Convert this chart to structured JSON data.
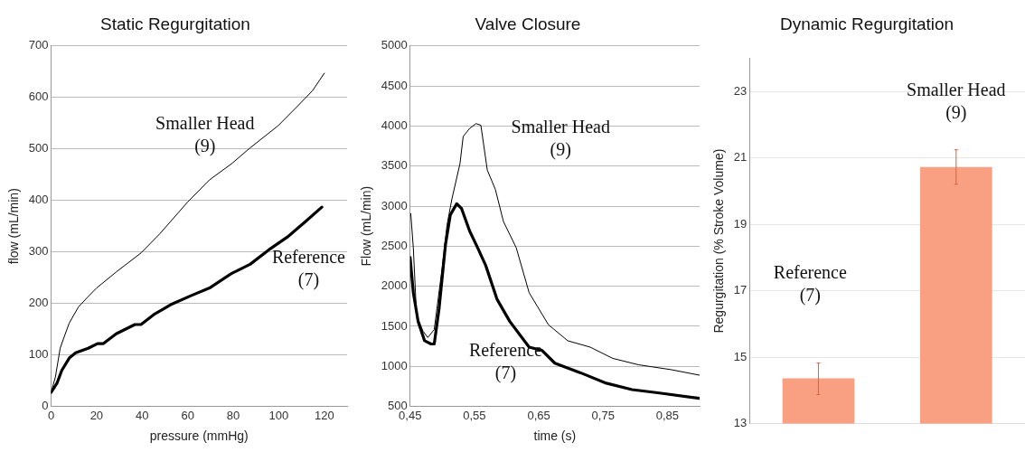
{
  "chart_data": [
    {
      "type": "line",
      "title": "Static Regurgitation",
      "xlabel": "pressure (mmHg)",
      "ylabel": "flow (mL/min)",
      "xlim": [
        0,
        130
      ],
      "xticks": [
        0,
        20,
        40,
        60,
        80,
        100,
        120
      ],
      "ylim": [
        0,
        700
      ],
      "yticks": [
        0,
        100,
        200,
        300,
        400,
        500,
        600,
        700
      ],
      "grid": "y",
      "marker": "none",
      "line_style": "solid",
      "series": [
        {
          "color": "#000000",
          "x": [
            0,
            1.9,
            4,
            6,
            8,
            12,
            16,
            20,
            28.6,
            39.5,
            47.7,
            60,
            69.6,
            79.2,
            87.4,
            99.7,
            108,
            114.8,
            120
          ],
          "values": [
            27,
            57,
            113,
            138,
            162,
            193,
            212,
            230,
            261,
            298,
            335,
            397,
            440,
            471,
            502,
            545,
            582,
            613,
            647
          ]
        },
        {
          "color": "#000000",
          "x": [
            0,
            2.6,
            4.7,
            8,
            10.8,
            16.3,
            20.4,
            23,
            28.6,
            36.8,
            39.5,
            45,
            53.2,
            61.4,
            69.6,
            79.2,
            87.4,
            95.6,
            103.8,
            112,
            118.9
          ],
          "values": [
            27,
            45,
            70,
            94,
            104,
            113,
            122,
            122,
            141,
            159,
            159,
            178,
            199,
            215,
            230,
            258,
            276,
            304,
            329,
            360,
            387
          ]
        }
      ],
      "annotations": [
        "Smaller Head\n(9)",
        "Reference\n(7)"
      ]
    },
    {
      "type": "line",
      "title": "Valve Closure",
      "xlabel": "time (s)",
      "ylabel": "Flow (mL/min)",
      "xlim": [
        0.45,
        0.9
      ],
      "xticks": [
        {
          "value": 0.45,
          "label": "0,45"
        },
        {
          "value": 0.55,
          "label": "0,55"
        },
        {
          "value": 0.65,
          "label": "0,65"
        },
        {
          "value": 0.75,
          "label": "0,75"
        },
        {
          "value": 0.85,
          "label": "0,85"
        }
      ],
      "ylim": [
        500,
        5000
      ],
      "yticks": [
        500,
        1000,
        1500,
        2000,
        2500,
        3000,
        3500,
        4000,
        4500,
        5000
      ],
      "grid": "y",
      "marker": "none",
      "line_style": "solid",
      "series": [
        {
          "color": "#000000",
          "x": [
            0.451,
            0.455,
            0.46,
            0.47,
            0.4775,
            0.4875,
            0.5,
            0.5075,
            0.515,
            0.5275,
            0.5325,
            0.5425,
            0.5525,
            0.56,
            0.57,
            0.5825,
            0.595,
            0.615,
            0.635,
            0.665,
            0.695,
            0.73,
            0.765,
            0.805,
            0.855,
            0.9
          ],
          "values": [
            2910,
            2480,
            1640,
            1440,
            1360,
            1460,
            2240,
            2770,
            3090,
            3530,
            3870,
            3970,
            4030,
            4010,
            3450,
            3210,
            2810,
            2480,
            1920,
            1520,
            1320,
            1240,
            1100,
            1020,
            960,
            890
          ]
        },
        {
          "color": "#000000",
          "x": [
            0.45,
            0.455,
            0.4625,
            0.4725,
            0.4825,
            0.4875,
            0.495,
            0.505,
            0.5125,
            0.5225,
            0.53,
            0.5425,
            0.555,
            0.5675,
            0.585,
            0.605,
            0.635,
            0.655,
            0.675,
            0.715,
            0.755,
            0.795,
            0.835,
            0.9
          ],
          "values": [
            2360,
            1920,
            1560,
            1320,
            1280,
            1280,
            1720,
            2520,
            2890,
            3030,
            2970,
            2690,
            2480,
            2260,
            1840,
            1560,
            1240,
            1200,
            1040,
            920,
            790,
            710,
            670,
            600
          ]
        }
      ],
      "annotations": [
        "Smaller Head\n(9)",
        "Reference\n(7)"
      ]
    },
    {
      "type": "bar",
      "title": "Dynamic Regurgitation",
      "ylabel": "Regurgitation (% Stroke Volume)",
      "categories": [
        null,
        null
      ],
      "values": [
        14.36,
        20.73
      ],
      "color": "#f9a082",
      "errors": [
        [
          13.87,
          14.82
        ],
        [
          20.21,
          21.25
        ]
      ],
      "ylim": [
        13,
        24
      ],
      "yticks": [
        13,
        15,
        17,
        19,
        21,
        23
      ],
      "grid": "y",
      "annotations": [
        "Reference\n(7)",
        "Smaller Head\n(9)"
      ]
    }
  ]
}
